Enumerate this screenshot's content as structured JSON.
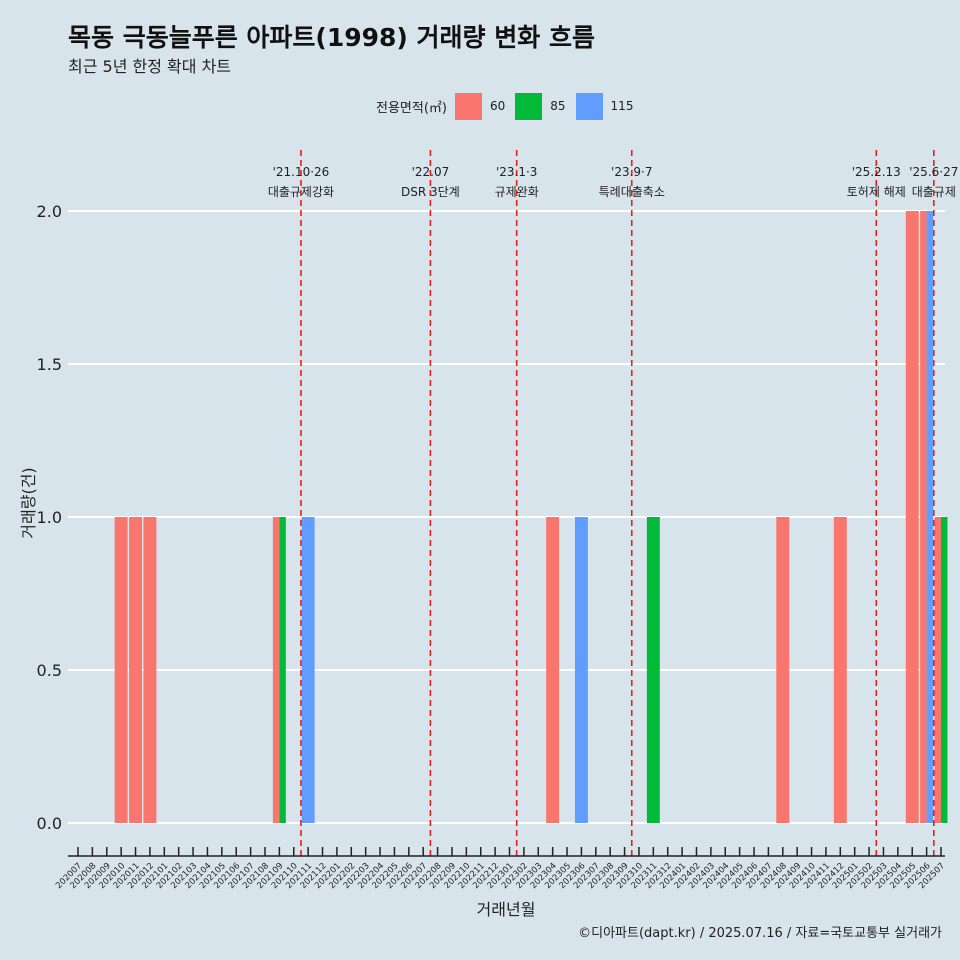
{
  "header": {
    "title": "목동 극동늘푸른 아파트(1998) 거래량 변화 흐름",
    "subtitle": "최근 5년 한정 확대 차트"
  },
  "legend": {
    "title": "전용면적(㎡)",
    "items": [
      {
        "label": "60",
        "color": "#F8766D"
      },
      {
        "label": "85",
        "color": "#00BA38"
      },
      {
        "label": "115",
        "color": "#619CFF"
      }
    ]
  },
  "caption": "©디아파트(dapt.kr) / 2025.07.16 / 자료=국토교통부 실거래가",
  "chart_data": {
    "type": "bar",
    "xlabel": "거래년월",
    "ylabel": "거래량(건)",
    "ylim": [
      0,
      2.0
    ],
    "yticks": [
      "0.0",
      "0.5",
      "1.0",
      "1.5",
      "2.0"
    ],
    "grid": true,
    "legend_position": "top",
    "categories": [
      "202007",
      "202008",
      "202009",
      "202010",
      "202011",
      "202012",
      "202101",
      "202102",
      "202103",
      "202104",
      "202105",
      "202106",
      "202107",
      "202108",
      "202109",
      "202110",
      "202111",
      "202112",
      "202201",
      "202202",
      "202203",
      "202204",
      "202205",
      "202206",
      "202207",
      "202208",
      "202209",
      "202210",
      "202211",
      "202212",
      "202301",
      "202302",
      "202303",
      "202304",
      "202305",
      "202306",
      "202307",
      "202308",
      "202309",
      "202310",
      "202311",
      "202312",
      "202401",
      "202402",
      "202403",
      "202404",
      "202405",
      "202406",
      "202407",
      "202408",
      "202409",
      "202410",
      "202411",
      "202412",
      "202501",
      "202502",
      "202503",
      "202504",
      "202505",
      "202506",
      "202507"
    ],
    "series": [
      {
        "name": "60",
        "color": "#F8766D",
        "points": [
          {
            "x": "202010",
            "y": 1
          },
          {
            "x": "202011",
            "y": 1
          },
          {
            "x": "202012",
            "y": 1
          },
          {
            "x": "202109",
            "y": 1
          },
          {
            "x": "202304",
            "y": 1
          },
          {
            "x": "202408",
            "y": 1
          },
          {
            "x": "202412",
            "y": 1
          },
          {
            "x": "202505",
            "y": 2
          },
          {
            "x": "202506",
            "y": 2
          },
          {
            "x": "202507",
            "y": 1
          }
        ]
      },
      {
        "name": "85",
        "color": "#00BA38",
        "points": [
          {
            "x": "202109",
            "y": 1
          },
          {
            "x": "202311",
            "y": 1
          },
          {
            "x": "202507",
            "y": 1
          }
        ]
      },
      {
        "name": "115",
        "color": "#619CFF",
        "points": [
          {
            "x": "202111",
            "y": 1
          },
          {
            "x": "202306",
            "y": 1
          },
          {
            "x": "202506",
            "y": 2
          }
        ]
      }
    ],
    "events": [
      {
        "x": "202110",
        "date": "'21.10·26",
        "label": "대출규제강화"
      },
      {
        "x": "202207",
        "date": "'22.07",
        "label": "DSR 3단계"
      },
      {
        "x": "202301",
        "date": "'23.1·3",
        "label": "규제완화"
      },
      {
        "x": "202309",
        "date": "'23.9·7",
        "label": "특례대출축소"
      },
      {
        "x": "202502",
        "date": "'25.2.13",
        "label": "토허제 해제"
      },
      {
        "x": "202506",
        "date": "'25.6·27",
        "label": "대출규제"
      }
    ]
  }
}
